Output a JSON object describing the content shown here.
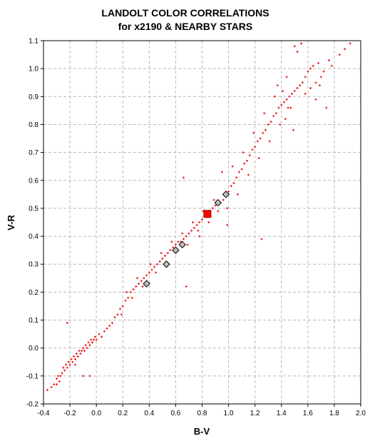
{
  "chart_data": {
    "type": "scatter",
    "title": [
      "LANDOLT COLOR CORRELATIONS",
      "for x2190 & NEARBY STARS"
    ],
    "xlabel": "B-V",
    "ylabel": "V-R",
    "xlim": [
      -0.4,
      2.0
    ],
    "ylim": [
      -0.2,
      1.1
    ],
    "x_ticks": [
      "-0.4",
      "-0.2",
      "0.0",
      "0.2",
      "0.4",
      "0.6",
      "0.8",
      "1.0",
      "1.2",
      "1.4",
      "1.6",
      "1.8",
      "2.0"
    ],
    "y_ticks": [
      "-0.2",
      "-0.1",
      "0.0",
      "0.1",
      "0.2",
      "0.3",
      "0.4",
      "0.5",
      "0.6",
      "0.7",
      "0.8",
      "0.9",
      "1.0",
      "1.1"
    ],
    "grid": true,
    "series": [
      {
        "marker": "red-plus",
        "color": "#ee0000",
        "points": [
          [
            -0.37,
            -0.15
          ],
          [
            -0.34,
            -0.14
          ],
          [
            -0.32,
            -0.13
          ],
          [
            -0.3,
            -0.11
          ],
          [
            -0.29,
            -0.1
          ],
          [
            -0.28,
            -0.12
          ],
          [
            -0.26,
            -0.09
          ],
          [
            -0.25,
            -0.07
          ],
          [
            -0.24,
            -0.08
          ],
          [
            -0.23,
            -0.06
          ],
          [
            -0.22,
            -0.07
          ],
          [
            -0.21,
            -0.05
          ],
          [
            -0.2,
            -0.06
          ],
          [
            -0.19,
            -0.04
          ],
          [
            -0.18,
            -0.05
          ],
          [
            -0.17,
            -0.03
          ],
          [
            -0.16,
            -0.04
          ],
          [
            -0.15,
            -0.02
          ],
          [
            -0.14,
            -0.03
          ],
          [
            -0.13,
            -0.01
          ],
          [
            -0.12,
            -0.02
          ],
          [
            -0.11,
            -0.01
          ],
          [
            -0.1,
            0.0
          ],
          [
            -0.09,
            -0.01
          ],
          [
            -0.08,
            0.01
          ],
          [
            -0.07,
            0.0
          ],
          [
            -0.06,
            0.02
          ],
          [
            -0.05,
            0.01
          ],
          [
            -0.04,
            0.03
          ],
          [
            -0.03,
            0.02
          ],
          [
            -0.02,
            0.03
          ],
          [
            -0.01,
            0.04
          ],
          [
            0.0,
            0.03
          ],
          [
            0.02,
            0.05
          ],
          [
            0.04,
            0.04
          ],
          [
            0.06,
            0.06
          ],
          [
            -0.22,
            0.09
          ],
          [
            -0.16,
            -0.06
          ],
          [
            -0.1,
            -0.1
          ],
          [
            -0.05,
            -0.1
          ],
          [
            -0.3,
            -0.13
          ],
          [
            -0.27,
            -0.1
          ],
          [
            0.08,
            0.07
          ],
          [
            0.1,
            0.08
          ],
          [
            0.12,
            0.09
          ],
          [
            0.14,
            0.11
          ],
          [
            0.16,
            0.12
          ],
          [
            0.18,
            0.14
          ],
          [
            0.2,
            0.15
          ],
          [
            0.22,
            0.17
          ],
          [
            0.24,
            0.18
          ],
          [
            0.26,
            0.2
          ],
          [
            0.28,
            0.21
          ],
          [
            0.3,
            0.22
          ],
          [
            0.32,
            0.23
          ],
          [
            0.34,
            0.24
          ],
          [
            0.36,
            0.25
          ],
          [
            0.38,
            0.26
          ],
          [
            0.4,
            0.27
          ],
          [
            0.42,
            0.28
          ],
          [
            0.44,
            0.29
          ],
          [
            0.46,
            0.3
          ],
          [
            0.48,
            0.31
          ],
          [
            0.5,
            0.32
          ],
          [
            0.52,
            0.33
          ],
          [
            0.54,
            0.34
          ],
          [
            0.56,
            0.35
          ],
          [
            0.58,
            0.36
          ],
          [
            0.6,
            0.37
          ],
          [
            0.62,
            0.38
          ],
          [
            0.64,
            0.38
          ],
          [
            0.66,
            0.39
          ],
          [
            0.68,
            0.4
          ],
          [
            0.7,
            0.41
          ],
          [
            0.72,
            0.42
          ],
          [
            0.74,
            0.43
          ],
          [
            0.76,
            0.44
          ],
          [
            0.78,
            0.45
          ],
          [
            0.8,
            0.46
          ],
          [
            0.82,
            0.47
          ],
          [
            0.84,
            0.48
          ],
          [
            0.86,
            0.49
          ],
          [
            0.88,
            0.5
          ],
          [
            0.9,
            0.51
          ],
          [
            0.19,
            0.12
          ],
          [
            0.23,
            0.2
          ],
          [
            0.27,
            0.18
          ],
          [
            0.31,
            0.25
          ],
          [
            0.35,
            0.22
          ],
          [
            0.41,
            0.3
          ],
          [
            0.45,
            0.27
          ],
          [
            0.49,
            0.34
          ],
          [
            0.53,
            0.3
          ],
          [
            0.57,
            0.38
          ],
          [
            0.61,
            0.35
          ],
          [
            0.65,
            0.41
          ],
          [
            0.69,
            0.37
          ],
          [
            0.73,
            0.45
          ],
          [
            0.77,
            0.42
          ],
          [
            0.81,
            0.49
          ],
          [
            0.85,
            0.45
          ],
          [
            0.89,
            0.53
          ],
          [
            0.66,
            0.61
          ],
          [
            0.68,
            0.22
          ],
          [
            0.78,
            0.4
          ],
          [
            0.92,
            0.49
          ],
          [
            0.94,
            0.52
          ],
          [
            0.96,
            0.53
          ],
          [
            0.98,
            0.55
          ],
          [
            1.0,
            0.56
          ],
          [
            1.02,
            0.58
          ],
          [
            1.04,
            0.59
          ],
          [
            1.06,
            0.61
          ],
          [
            1.08,
            0.63
          ],
          [
            1.1,
            0.64
          ],
          [
            1.12,
            0.66
          ],
          [
            1.14,
            0.67
          ],
          [
            1.16,
            0.69
          ],
          [
            1.18,
            0.71
          ],
          [
            1.2,
            0.72
          ],
          [
            1.22,
            0.74
          ],
          [
            1.24,
            0.75
          ],
          [
            1.26,
            0.77
          ],
          [
            1.28,
            0.78
          ],
          [
            1.3,
            0.8
          ],
          [
            1.32,
            0.81
          ],
          [
            1.34,
            0.83
          ],
          [
            1.36,
            0.84
          ],
          [
            1.38,
            0.86
          ],
          [
            1.4,
            0.87
          ],
          [
            1.42,
            0.88
          ],
          [
            1.44,
            0.89
          ],
          [
            1.46,
            0.9
          ],
          [
            1.48,
            0.91
          ],
          [
            1.5,
            0.92
          ],
          [
            1.52,
            0.93
          ],
          [
            1.54,
            0.94
          ],
          [
            1.56,
            0.95
          ],
          [
            0.95,
            0.63
          ],
          [
            0.99,
            0.5
          ],
          [
            1.03,
            0.65
          ],
          [
            1.07,
            0.55
          ],
          [
            1.11,
            0.7
          ],
          [
            1.15,
            0.62
          ],
          [
            1.19,
            0.77
          ],
          [
            1.23,
            0.68
          ],
          [
            1.27,
            0.84
          ],
          [
            1.31,
            0.74
          ],
          [
            1.35,
            0.9
          ],
          [
            1.39,
            0.8
          ],
          [
            1.43,
            0.82
          ],
          [
            1.47,
            0.86
          ],
          [
            1.49,
            0.78
          ],
          [
            1.37,
            0.94
          ],
          [
            1.25,
            0.39
          ],
          [
            0.99,
            0.44
          ],
          [
            1.58,
            0.97
          ],
          [
            1.6,
            0.99
          ],
          [
            1.62,
            1.0
          ],
          [
            1.64,
            1.01
          ],
          [
            1.66,
            0.95
          ],
          [
            1.68,
            1.02
          ],
          [
            1.7,
            0.97
          ],
          [
            1.72,
            0.99
          ],
          [
            1.74,
            0.86
          ],
          [
            1.76,
            1.03
          ],
          [
            1.78,
            1.01
          ],
          [
            1.84,
            1.05
          ],
          [
            1.88,
            1.07
          ],
          [
            1.92,
            1.09
          ],
          [
            1.5,
            1.08
          ],
          [
            1.55,
            1.09
          ],
          [
            1.52,
            1.06
          ],
          [
            1.66,
            0.89
          ],
          [
            1.44,
            0.97
          ],
          [
            1.41,
            0.92
          ],
          [
            1.58,
            0.91
          ],
          [
            1.62,
            0.93
          ],
          [
            1.69,
            0.94
          ],
          [
            1.45,
            0.86
          ]
        ]
      },
      {
        "marker": "gray-diamond",
        "color": "#c0c0c0",
        "points": [
          [
            0.38,
            0.23
          ],
          [
            0.53,
            0.3
          ],
          [
            0.6,
            0.35
          ],
          [
            0.65,
            0.37
          ],
          [
            0.92,
            0.52
          ],
          [
            0.98,
            0.55
          ]
        ]
      },
      {
        "marker": "red-square",
        "color": "#ff0000",
        "points": [
          [
            0.84,
            0.48
          ]
        ]
      }
    ]
  }
}
